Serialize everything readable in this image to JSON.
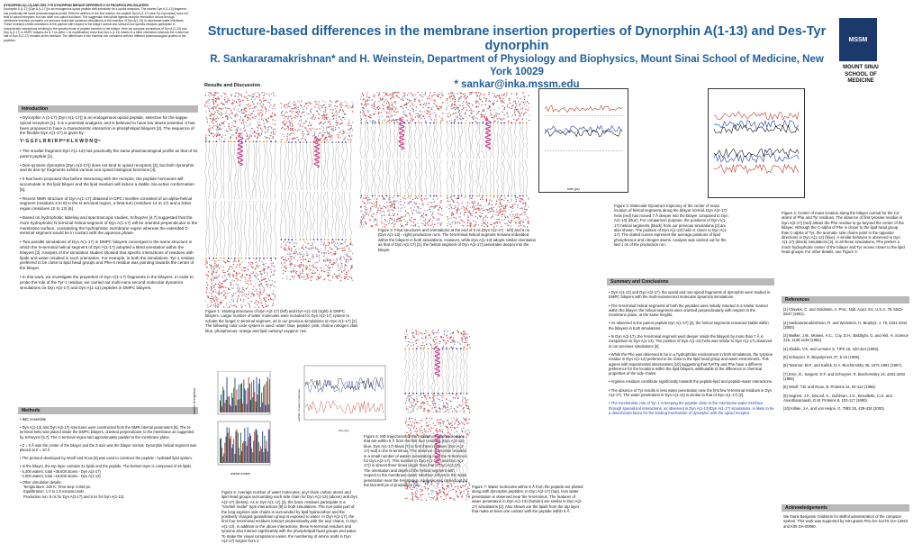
{
  "title": {
    "line1": "Structure-based differences in the membrane insertion properties of Dynorphin A(1-13) and Des-Tyr dynorphin",
    "line2": "R. Sankararamakrishnan* and H. Weinstein, Department of Physiology and Biophysics, Mount Sinai School of Medicine, New York 10029",
    "line3": "* sankar@inka.mssm.edu"
  },
  "logo": {
    "mark": "MSSM",
    "text": "MOUNT SINAI SCHOOL OF MEDICINE"
  },
  "abstract": {
    "heading": "DYNORPHIN A(1-13) AND DES-TYR DYNORPHIN BEHAVE DIFFERENTLY IN PHOSPHOLIPID BILAYERS",
    "body": "Dynorphin A (1-17) [Dyn A (1-17)] is an endogenous opioid peptide with selectivity for k-opioid receptors. The shorter Dyn A (1-13) fragment has practically the same pharmacological profile. With the deletion of the first residue, the peptide Dyn A (2-17) (des-Tyr-Dynorphin) does not bind to opioid receptors, but has other non-opioid functions. The suggestion that opioid ligands-receptor interaction occurs through membrane insertion prompted our previous molecular dynamics simulations of the insertion of Dyn A(1-13) in membrane-water interfaces. These revealed a tilted orientation of the peptide with respect to the bilayer normal and showed how specific residues participate in characteristic interactions resulting in the specific mode of peptide insertion in the bilayer. Here we compare simulations of Dyn A (1-13) and Dyn A (2-17) in DMPC bilayers for 6-7 ns (after 1 ns equilibration) show that Dyn A (1-13) inserts in a tilted orientation whereas the N-terminal half of Dyn A (2-17) remains at the interface. The differences in the insertion are consistent with the different pharmacological profiles of the peptides."
  },
  "results_heading": "Results and Discussion",
  "introduction": {
    "heading": "Introduction",
    "bullets": [
      "Dynorphin A (1-17) [Dyn A(1-17)] is an endogenous opioid peptide, selective for the kappa-opioid receptors [1]. It is a potential analgesic and is believed to have low abuse potential. It has been proposed to have a characteristic interaction in phospholipid bilayers [2]. The sequence of the flexible Dyn A(1-17) is given by:",
      "The smaller fragment Dyn A(1-13) has practically the same pharmacological profile as that of its parent peptide [1].",
      "Des-tyrosine dynorphin [Dyn A(2-17)] does not bind to opioid receptors [3], but both dynorphin and its des-tyr fragments exhibit various non-opioid biological functions [4].",
      "It has been proposed that before interacting with the receptor, the peptide hormones will accumulate in the lipid bilayer and the lipid medium will induce a stable, bio-active conformation [5].",
      "Recent NMR structure of Dyn A(1-17) obtained in DPC micelles consisted of an alpha-helical segment (residues 3 to 9) in the N-terminal region, a beta-turn (residues 14 to 17) and a linker region (residues 10 to 13) [6].",
      "Based on hydrophobic labeling and spectroscopic studies, Schwyzer [4,7] suggested that the more hydrophobic N-terminal helical segment of Dyn A(1-17) will be oriented perpendicular to the membrane surface, considering the hydrophobic membrane region whereas the extended C-terminal segment would be in contact with the aqueous phase.",
      "Two parallel simulations of Dyn A(1-17) in DMPC bilayers converged to the same structure in which the N-terminal helical segment of Dyn A(1-17) adopted a tilted orientation within the bilayers [2]. Analysis of the simulation studies showed that specific interactions of residues with lipids and water resulted in such orientation. For example, in both the simulations, Tyr-1 residue preferred to be close to lipid head groups and Phe-4 residue was pointing towards the center of the bilayer.",
      "In this work, we investigate the properties of Dyn A(1-17) fragments in the bilayers. In order to probe the role of the Tyr-1 residue, we carried out multi-nano second molecular dynamics simulations on Dyn A(2-17) and Dyn A(1-13) peptides in DMPC bilayers."
    ],
    "sequence": "Y¹ G G F L R R I R P¹⁰ K L K W D N Q¹⁷"
  },
  "methods": {
    "heading": "Methods",
    "items": [
      "IMC ensemble",
      "Dyn A(1-13) and Dyn A(2-17) structures were constructed from the NMR internal parameters [6]. The N-terminal helix was placed inside the DMPC bilayers, oriented perpendicular to the membrane as suggested by Schwyzer [5,7]. The C-terminal region laid approximately parallel to the membrane plane.",
      "Z = 0 Å was the center of the bilayer and the Z-axis was the bilayer normal. Dynorphin helical segment was placed at Z = 10 Å.",
      "The protocol developed by Woolf and Roux [8] was used to construct the peptide - hydrated lipid system.",
      "In the bilayer, the top layer contains 41 lipids and the peptide. The bottom layer is composed of 45 lipids",
      "- 5,300 waters; total ~38,600 atoms - Dyn A(2-17)",
      "- 2,000 waters; total ~18,600 atoms - Dyn A(1-13)",
      "Other simulation details:",
      "Temperature: 330 K; Time step: 0.002 ps.",
      "Equilibration: 1.0 to 1.5 nanoseconds",
      "Production run: 5 ns for Dyn A(2-17) and 6 ns for Dyn A(1-13)."
    ]
  },
  "figure1_caption": "Figure 1: Starting structures of Dyn A(2-17) (left) and Dyn A(1-13) (right) in DMPC bilayers. Larger number of water molecules were included for Dyn A(2-17) system to solvate the longer C-terminal segment, as in our previous simulations on Dyn A(1-17) [2]. The following color code system is used: water: blue, peptide: pink, choline nitrogen: dark blue, phosphorous: orange and lipid carbonyl oxygens: red.",
  "figure2_caption": "Figure 2: Final structures and orientations at the end of 5 ns (Dyn A(2-17) - left) and 6 ns (Dyn A(1-13) - right) production runs. The N-terminal helical segment remains imbedded within the bilayers in both simulations. However, while Dyn A(1-13) adopts similar orientation as that of Dyn A(1-17) [2], the helical segment of Dyn A(2-17) penetrates deeper into the bilayer.",
  "figure3_caption": "Figure 3: Molecular Dynamics trajectory of the center of mass location of helical segments along the bilayer normal. Dyn A(2-17) helix (red) has moved 7 Å deeper into the bilayer compared to Dyn A(1-13) (blue). For comparison purpose, the positions of Dyn A(1-17) helical segments (black) from our previous simulations [2] are also shown. The position of Dyn A(1-13) helix is closer to Dyn A(1-17). The dotted curves represent the average positions of lipid phosphorous and nitrogen atoms. Analysis was carried out for the last 1 ns of the production run.",
  "figure4_caption": "Figure 4: Center of mass location along the bilayer normal for the CZ atoms of Phe and Tyr residues. The absence of first tyrosine residue in Dyn A(2-17) (red) allows the Phe residue to go beyond the center of the bilayer. Although the C-alpha of Phe is closer to the lipid head group than C-alpha of Tyr, the aromatic side chains point in the opposite directions in Dyn A(1-13) (blue). A similar behavior is observed in Dyn A(1-17) (black) simulations [2]. In all these simulations, Phe prefers a much hydrophobic center of the bilayer and Tyr moves closer to the lipid head groups. For other details, see Figure 3.",
  "figure5_caption": "Figure 5: Average number of water molecules, acyl chain carbon atoms and lipid head groups surrounding each side chain for Dyn A(1-13) (above) and Dyn A(2-17) (below). As in Dyn A(1-17) [2], the basic residues participate in a \"snorkel model\" type interactions [9] in both simulations. The non-polar part of the long arginine side chains is surrounded by lipid hydrocarbon and the positively charged guanidinium group is exposed to water. In Dyn A(2-17), the first four N-terminal residues interact predominantly with the acyl chains. In Dyn A(1-13), in addition to the above interactions, these N-terminal residues and tyrosine also interact significantly with the phospholipid head groups and water. To make the visual comparison easier, the numbering of amino acids in Dyn A(2-17) begins from 2.",
  "figure6_caption": "Figure 6: MD trajectories of the number of water molecules that are within 5 Å from the first four residues (Dyn A(2-13)-blue, Dyn A(1-17)-black [7] or first three residues (Dyn A(2-17)-red) in the N-terminus. The absence of tyrosine resulted in a small number of waters penetrating near the N-terminus for Dyn A(2-17). This number in Dyn A(1-13) (and Dyn A(1-17)) is almost three times larger than that in Dyn A(2-17). The orientation and depth of the helical segment with respect to the membrane-water interface influence the water penetration near the N-terminus. Analysis was carried out for the last 500 ps of production run.",
  "figure7_caption": "Figure 7: Water molecules within 5 Å from the peptide are plotted along with dynorphin peptides. In Dyn A(2-17) (top), less water penetration is observed near the N-terminus. The features of water penetration in Dyn A(1-13) (bottom) are similar to Dyn A(1-17) simulations [2]. Also shown are the lipids from the top layer that make at least one contact with the peptide within 5 Å.",
  "summary": {
    "heading": "Summary and Conclusions",
    "bullets": [
      "Dyn A(1-13) and Dyn A(2-17), the opioid and non-opioid fragments of dynorphin were studied in DMPC bilayers with the multi-nanosecond molecular dynamics simulations.",
      "The N-terminal helical segments of both the peptides were initially inserted in a similar manner within the bilayer; the helical segments were oriented perpendicularly with respect to the membrane plane, at the same heights.",
      "As observed in the parent peptide Dyn A(1-17) [2], the helical segments remained stable within the bilayers in both simulations.",
      "In Dyn A(2-17), the N-terminal segment went deeper inside the bilayers by more than 7 Å in comparison to Dyn A(1-13). The position of Dyn A(1-13) helix was similar to Dyn A(1-17) observed in our previous simulations [2].",
      "While the Phe was observed to be in a hydrophobic environment in both simulations, the tyrosine residue in Dyn A(1-13) preferred to be close to the lipid head group and water environment. This agrees with experimental observations [10] suggesting that Tyr/Trp and Phe have a different preference for the locations within the lipid bilayers, attributable to the difference in chemical properties of the side chains.",
      "Arginine residues contribute significantly towards the peptide-lipid and peptide-water interactions.",
      "The absence of Tyr results in less water penetration near the first few N-terminal residues in Dyn A(2-17). The water penetration in Dyn A(1-13) is similar to that of Dyn A(1-17) [2].",
      "The mechanistic role of Tyr-1 in keeping the peptide close to the membrane-water interface through specialized interactions, as observed in Dyn A(1-13)/Dyn A(1-17) simulations, is likely to be a determinant factor for the binding mechanism of dynorphin with the opioid receptor."
    ]
  },
  "references": {
    "heading": "References",
    "items": [
      "[1] Chavkin, C. and Goldstein, A. Proc. Natl. Acad. Sci. U.S.A. 78, 6543-6547 (1981).",
      "[2] Sankararamakrishnan, R. and Weinstein, H. Biophys. J. 79, 2331-2344 (2000)",
      "[3] Walker, J.M., Moises, H.C., Coy, D.H., Baldrighi, G. and Akil, H. Science 218, 1136-1138 (1982).",
      "[4] Shukla, V.K. and Lemaire S. TIPS 15, 420-424 (1994).",
      "[5] Schwyzer, R. Biopolymers 37, 5-16 (1995).",
      "[6] Tessmer, M.R. and Kallick, D.A. Biochemistry 36, 1971-1981 (1997).",
      "[7] Erne, D., Sargent, D.F. and Schwyzer, R. Biochemistry 24, 4261-4263 (1985)",
      "[8] Woolf, T.B. and Roux, B. Proteins 24, 92-114 (1996).",
      "[9] Segrest, J.P., DeLoof, H., Dohlman, J.G., Brouillette, C.G. and Anantharamaiah, G.M. Proteins 8, 103-117 (1990).",
      "[10] Killian, J.A. and von Heijne, G. TIBS 25, 429-434 (2000)."
    ]
  },
  "acknowledgements": {
    "heading": "Acknowledgements",
    "body": "We thank Benjamin Goldstein for skillful administration of the computer system. This work was supported by NIH grants P01 DA-11470, DA-12923 and K05 DA-00060."
  },
  "chart_fig3": {
    "xlabel": "time (ps)"
  },
  "chart_fig5": {
    "xlabel": "residue number",
    "ylabel": "number of neighbors"
  },
  "chart_fig6": {
    "xlabel": "time (ps)",
    "ylabel": "number of water molecules"
  }
}
